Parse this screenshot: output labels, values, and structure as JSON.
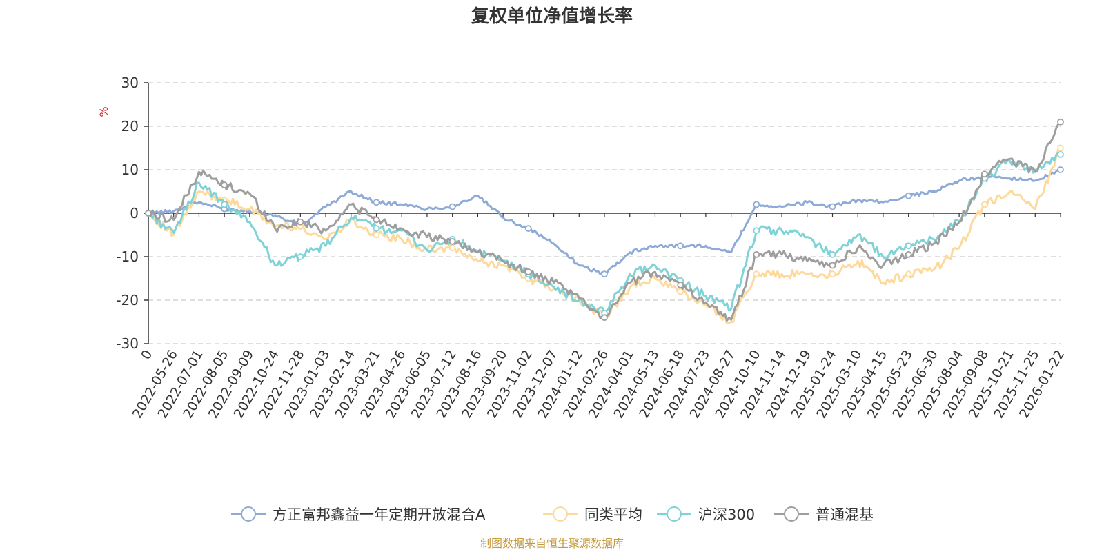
{
  "chart_data": {
    "type": "line",
    "title": "复权单位净值增长率",
    "ylabel": "%",
    "ylim": [
      -30,
      30
    ],
    "yticks": [
      30,
      20,
      10,
      0,
      -10,
      -20,
      -30
    ],
    "grid": true,
    "legend_position": "bottom",
    "categories": [
      "0",
      "2022-05-26",
      "2022-07-01",
      "2022-08-05",
      "2022-09-09",
      "2022-10-24",
      "2022-11-28",
      "2023-01-03",
      "2023-02-14",
      "2023-03-21",
      "2023-04-26",
      "2023-06-05",
      "2023-07-12",
      "2023-08-16",
      "2023-09-20",
      "2023-11-02",
      "2023-12-07",
      "2024-01-12",
      "2024-02-26",
      "2024-04-01",
      "2024-05-13",
      "2024-06-18",
      "2024-07-23",
      "2024-08-27",
      "2024-10-10",
      "2024-11-14",
      "2024-12-19",
      "2025-01-24",
      "2025-03-10",
      "2025-04-15",
      "2025-05-23",
      "2025-06-30",
      "2025-08-04",
      "2025-09-08",
      "2025-10-21",
      "2025-11-25",
      "2026-01-22"
    ],
    "series": [
      {
        "name": "方正富邦鑫益一年定期开放混合A",
        "color": "#8eaad6",
        "values": [
          0,
          0.5,
          2.5,
          1.0,
          0.5,
          -0.5,
          -3.0,
          1.5,
          5.0,
          2.5,
          2.0,
          1.0,
          1.5,
          4.0,
          -1.0,
          -3.5,
          -7.0,
          -12.0,
          -14.0,
          -9.0,
          -7.5,
          -7.5,
          -7.5,
          -9.0,
          2.0,
          1.5,
          2.5,
          1.5,
          3.0,
          2.5,
          4.0,
          5.0,
          7.5,
          8.5,
          8.0,
          7.5,
          10.0
        ]
      },
      {
        "name": "同类平均",
        "color": "#fdd99b",
        "values": [
          0,
          -5.0,
          5.0,
          3.0,
          1.0,
          -3.0,
          -3.0,
          -6.0,
          -1.5,
          -5.0,
          -6.0,
          -8.5,
          -8.0,
          -11.0,
          -12.0,
          -15.0,
          -17.5,
          -20.0,
          -24.0,
          -17.0,
          -15.0,
          -18.0,
          -21.0,
          -25.0,
          -14.0,
          -14.0,
          -14.0,
          -14.0,
          -11.0,
          -16.0,
          -14.0,
          -13.0,
          -8.0,
          2.0,
          5.0,
          1.0,
          15.0
        ]
      },
      {
        "name": "沪深300",
        "color": "#7fd3d8",
        "values": [
          0,
          -4.5,
          7.0,
          2.0,
          -2.0,
          -12.0,
          -10.0,
          -7.5,
          -1.0,
          -3.5,
          -4.0,
          -8.5,
          -6.0,
          -9.0,
          -11.0,
          -14.0,
          -17.0,
          -20.0,
          -23.0,
          -14.0,
          -12.0,
          -15.5,
          -19.0,
          -22.0,
          -4.0,
          -4.0,
          -5.5,
          -9.5,
          -5.0,
          -10.0,
          -7.5,
          -6.0,
          -2.0,
          8.0,
          12.0,
          10.0,
          13.5
        ]
      },
      {
        "name": "普通混基",
        "color": "#9e9e9e",
        "values": [
          0,
          -1.5,
          9.5,
          6.5,
          4.5,
          -3.5,
          -2.0,
          -4.0,
          2.0,
          -1.5,
          -3.5,
          -5.5,
          -6.5,
          -9.0,
          -11.0,
          -13.5,
          -16.0,
          -19.5,
          -24.0,
          -16.0,
          -13.5,
          -16.5,
          -20.5,
          -24.5,
          -9.5,
          -9.5,
          -11.0,
          -12.0,
          -8.0,
          -12.0,
          -9.5,
          -7.0,
          -2.0,
          9.0,
          12.5,
          9.5,
          21.0
        ]
      }
    ]
  },
  "footer": "制图数据来自恒生聚源数据库"
}
